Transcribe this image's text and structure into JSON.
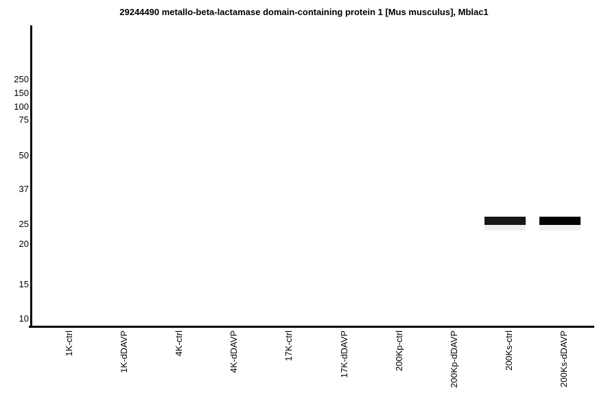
{
  "chart_data": {
    "type": "heatmap",
    "subtype": "western-blot-gel-lanes",
    "title": "29244490 metallo-beta-lactamase domain-containing protein 1 [Mus musculus], Mblac1",
    "categories": [
      "1K-ctrl",
      "1K-dDAVP",
      "4K-ctrl",
      "4K-dDAVP",
      "17K-ctrl",
      "17K-dDAVP",
      "200Kp-ctrl",
      "200Kp-dDAVP",
      "200Ks-ctrl",
      "200Ks-dDAVP"
    ],
    "mw_markers_kda": [
      250,
      150,
      100,
      75,
      50,
      37,
      25,
      20,
      15,
      10
    ],
    "bands": [
      {
        "lane": "200Ks-ctrl",
        "kda": 26,
        "intensity": 0.95,
        "color": "#161616",
        "shadow_color": "#efefef"
      },
      {
        "lane": "200Ks-dDAVP",
        "kda": 26,
        "intensity": 1.0,
        "color": "#000000",
        "shadow_color": "#efefef"
      }
    ],
    "axis_color": "#000000",
    "background_color": "#ffffff",
    "grid": false,
    "legend": false,
    "y_scale": "molecular-weight ladder (kDa), log-like, decreasing downward",
    "x_layout": "10 evenly spaced lanes, labels rotated 90° reading bottom-to-top"
  }
}
